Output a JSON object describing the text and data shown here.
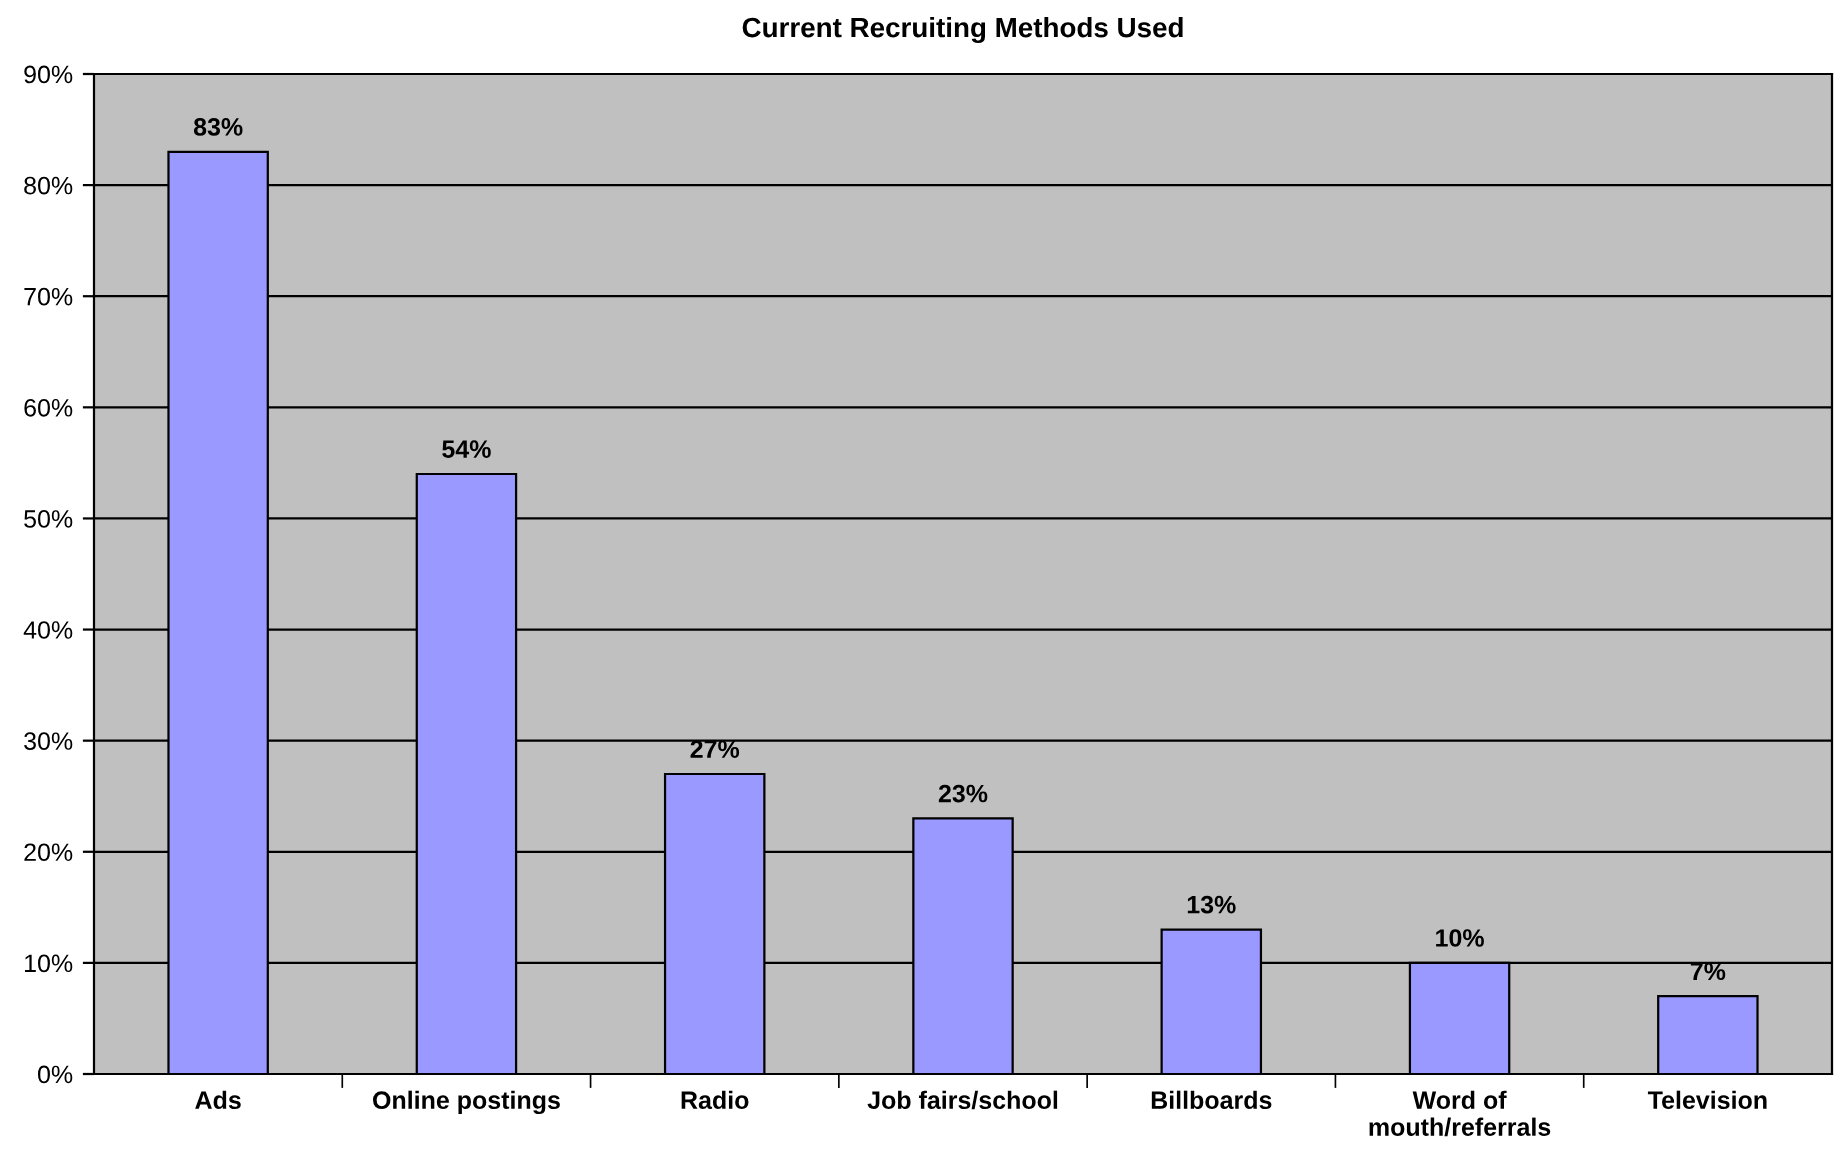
{
  "chart_data": {
    "type": "bar",
    "title": "Current Recruiting Methods Used",
    "categories": [
      "Ads",
      "Online postings",
      "Radio",
      "Job fairs/school",
      "Billboards",
      "Word of\nmouth/referrals",
      "Television"
    ],
    "values": [
      83,
      54,
      27,
      23,
      13,
      10,
      7
    ],
    "value_labels": [
      "83%",
      "54%",
      "27%",
      "23%",
      "13%",
      "10%",
      "7%"
    ],
    "color": "#9999ff",
    "ylim": [
      0,
      90
    ],
    "yticks": [
      {
        "value": 0,
        "label": "0%"
      },
      {
        "value": 10,
        "label": "10%"
      },
      {
        "value": 20,
        "label": "20%"
      },
      {
        "value": 30,
        "label": "30%"
      },
      {
        "value": 40,
        "label": "40%"
      },
      {
        "value": 50,
        "label": "50%"
      },
      {
        "value": 60,
        "label": "60%"
      },
      {
        "value": 70,
        "label": "70%"
      },
      {
        "value": 80,
        "label": "80%"
      },
      {
        "value": 90,
        "label": "90%"
      }
    ],
    "grid": "y"
  }
}
